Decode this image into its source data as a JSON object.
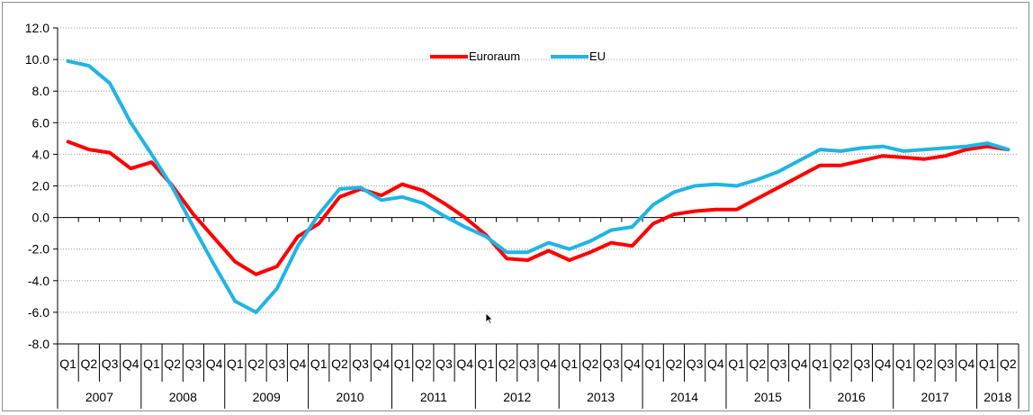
{
  "chart_data": {
    "type": "line",
    "title": "",
    "xlabel": "",
    "ylabel": "",
    "ylim": [
      -8,
      12
    ],
    "yticks": [
      "12.0",
      "10.0",
      "8.0",
      "6.0",
      "4.0",
      "2.0",
      "0.0",
      "-2.0",
      "-4.0",
      "-6.0",
      "-8.0"
    ],
    "grid": true,
    "legend_position": "top-center",
    "quarter_labels": [
      "Q1",
      "Q2",
      "Q3",
      "Q4",
      "Q1",
      "Q2",
      "Q3",
      "Q4",
      "Q1",
      "Q2",
      "Q3",
      "Q4",
      "Q1",
      "Q2",
      "Q3",
      "Q4",
      "Q1",
      "Q2",
      "Q3",
      "Q4",
      "Q1",
      "Q2",
      "Q3",
      "Q4",
      "Q1",
      "Q2",
      "Q3",
      "Q4",
      "Q1",
      "Q2",
      "Q3",
      "Q4",
      "Q1",
      "Q2",
      "Q3",
      "Q4",
      "Q1",
      "Q2",
      "Q3",
      "Q4",
      "Q1",
      "Q2",
      "Q3",
      "Q4",
      "Q1",
      "Q2"
    ],
    "years": [
      {
        "label": "2007",
        "quarters": 4
      },
      {
        "label": "2008",
        "quarters": 4
      },
      {
        "label": "2009",
        "quarters": 4
      },
      {
        "label": "2010",
        "quarters": 4
      },
      {
        "label": "2011",
        "quarters": 4
      },
      {
        "label": "2012",
        "quarters": 4
      },
      {
        "label": "2013",
        "quarters": 4
      },
      {
        "label": "2014",
        "quarters": 4
      },
      {
        "label": "2015",
        "quarters": 4
      },
      {
        "label": "2016",
        "quarters": 4
      },
      {
        "label": "2017",
        "quarters": 4
      },
      {
        "label": "2018",
        "quarters": 2
      }
    ],
    "series": [
      {
        "name": "Euroraum",
        "color": "#ff0000",
        "values": [
          4.8,
          4.3,
          4.1,
          3.1,
          3.5,
          2.0,
          0.2,
          -1.3,
          -2.8,
          -3.6,
          -3.1,
          -1.2,
          -0.4,
          1.3,
          1.8,
          1.4,
          2.1,
          1.7,
          0.9,
          0.0,
          -1.1,
          -2.6,
          -2.7,
          -2.1,
          -2.7,
          -2.2,
          -1.6,
          -1.8,
          -0.4,
          0.2,
          0.4,
          0.5,
          0.5,
          1.2,
          1.9,
          2.6,
          3.3,
          3.3,
          3.6,
          3.9,
          3.8,
          3.7,
          3.9,
          4.3,
          4.5,
          4.3
        ]
      },
      {
        "name": "EU",
        "color": "#1fb4e6",
        "values": [
          9.9,
          9.6,
          8.5,
          6.0,
          4.0,
          1.9,
          -0.6,
          -3.0,
          -5.3,
          -6.0,
          -4.5,
          -1.8,
          0.2,
          1.8,
          1.9,
          1.1,
          1.3,
          0.9,
          0.1,
          -0.6,
          -1.2,
          -2.2,
          -2.2,
          -1.6,
          -2.0,
          -1.5,
          -0.8,
          -0.6,
          0.8,
          1.6,
          2.0,
          2.1,
          2.0,
          2.4,
          2.9,
          3.6,
          4.3,
          4.2,
          4.4,
          4.5,
          4.2,
          4.3,
          4.4,
          4.5,
          4.7,
          4.3
        ]
      }
    ]
  },
  "icons": {
    "cursor": "mouse-pointer-icon"
  }
}
